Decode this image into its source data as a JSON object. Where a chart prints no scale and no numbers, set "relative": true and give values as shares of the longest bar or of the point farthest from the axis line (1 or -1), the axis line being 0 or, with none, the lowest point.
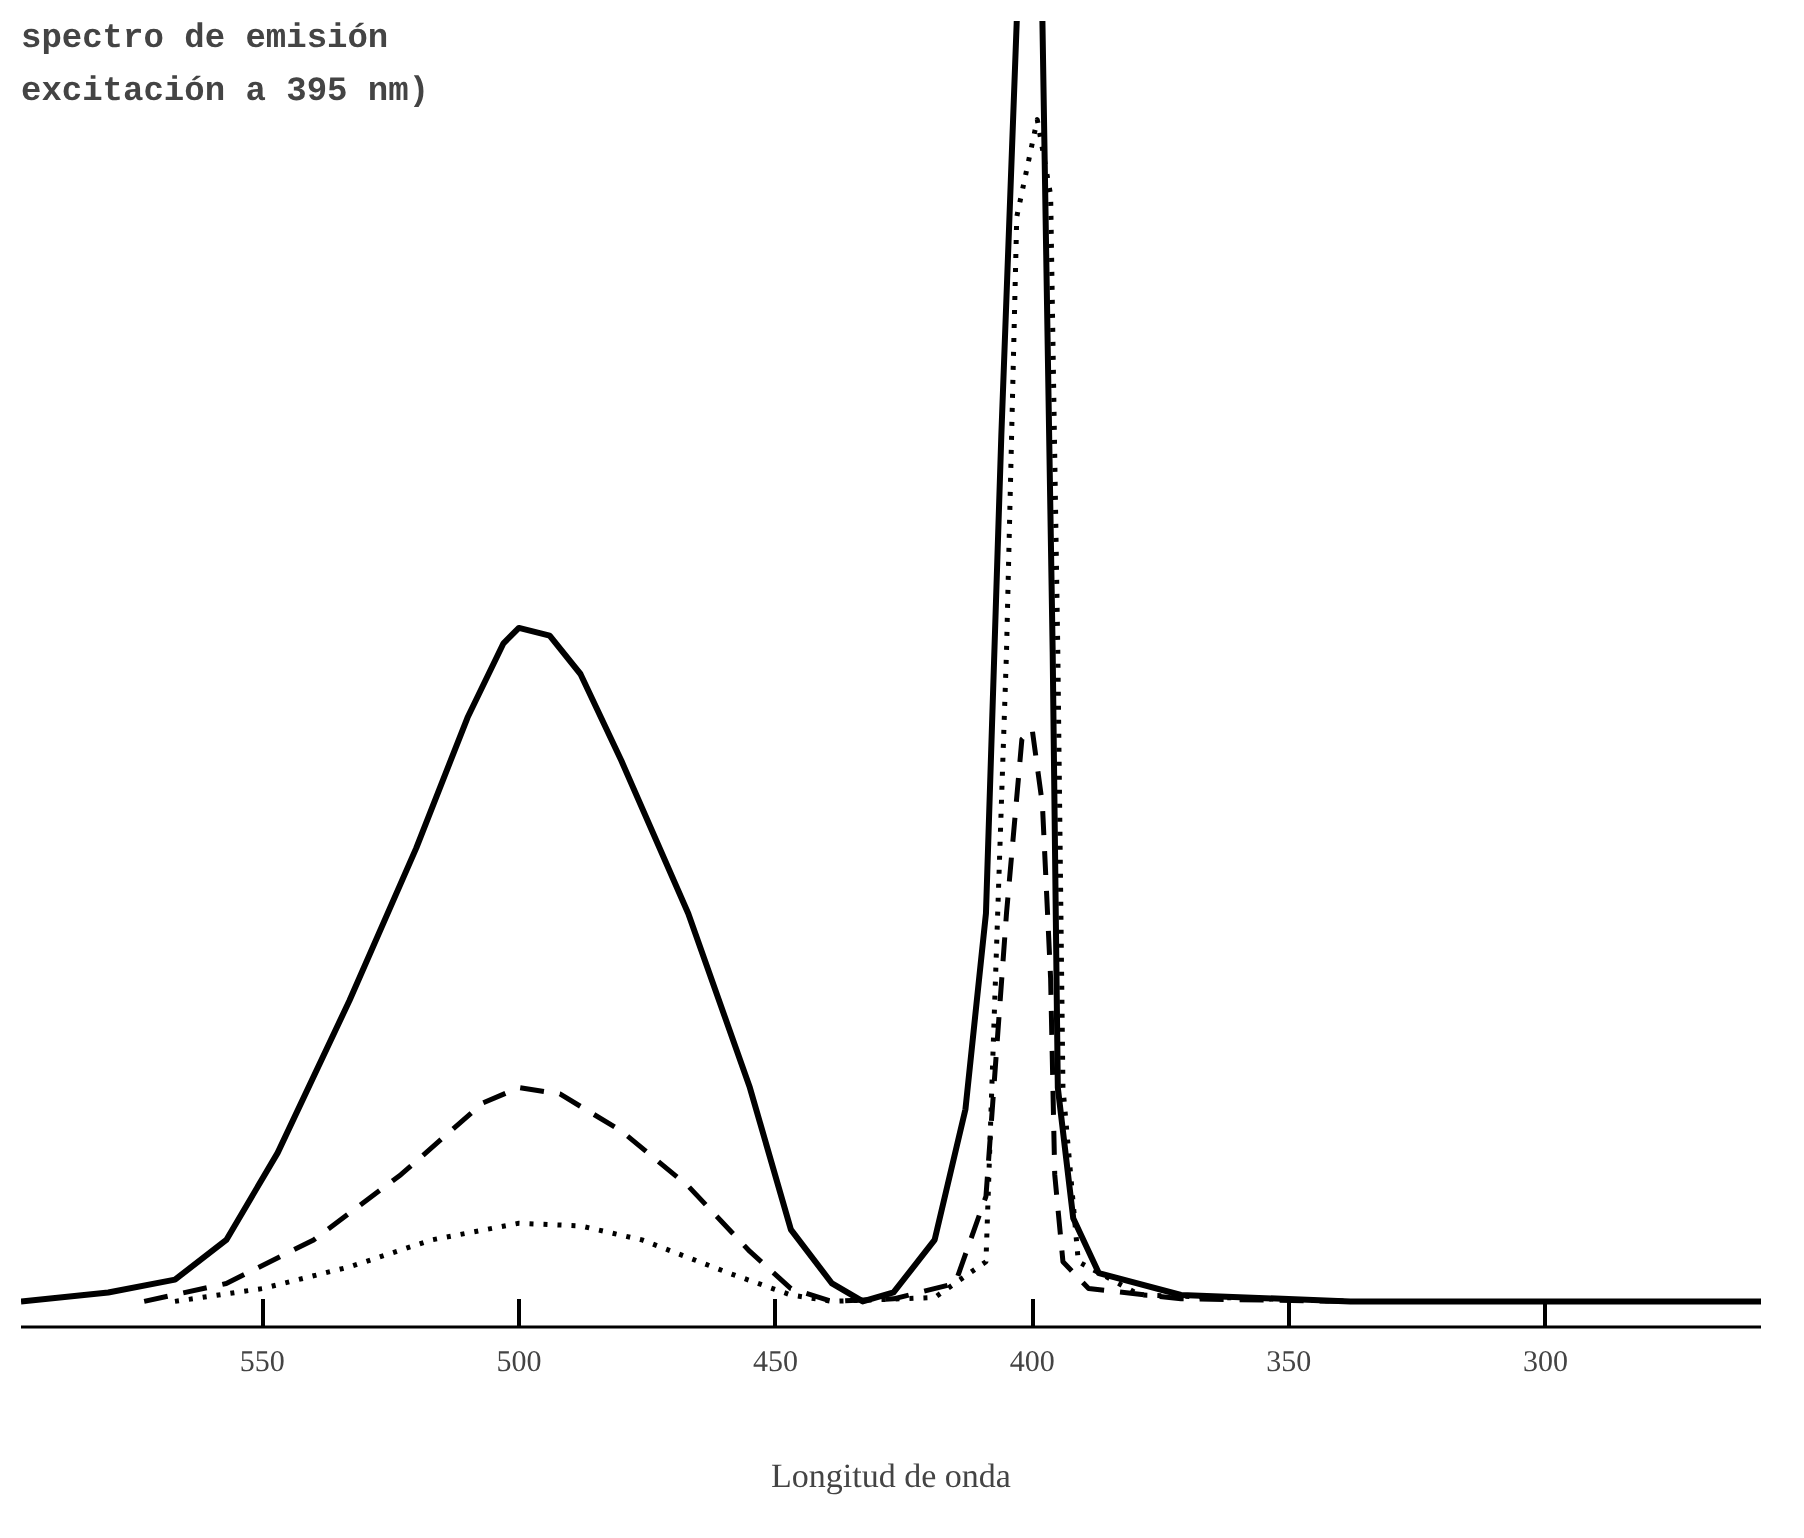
{
  "chart_data": {
    "type": "line",
    "title": "spectro de emisión\nexcitación a 395 nm)",
    "xlabel": "Longitud de onda",
    "relative": true,
    "xlim": [
      597,
      258
    ],
    "xticks": [
      550,
      500,
      450,
      400,
      350,
      300
    ],
    "grid": false,
    "marker": "none",
    "series": [
      {
        "color": "#000000",
        "line_style": "solid",
        "x": [
          597,
          580,
          567,
          557,
          547,
          533,
          520,
          510,
          503,
          500,
          494,
          488,
          480,
          467,
          455,
          447,
          439,
          433,
          427,
          419,
          413,
          409,
          406,
          403,
          400,
          398,
          396,
          395,
          392,
          387,
          371,
          338,
          299,
          258
        ],
        "values": [
          0,
          0.007,
          0.017,
          0.048,
          0.116,
          0.235,
          0.354,
          0.456,
          0.514,
          0.526,
          0.52,
          0.49,
          0.422,
          0.303,
          0.167,
          0.056,
          0.014,
          0,
          0.007,
          0.048,
          0.15,
          0.303,
          0.677,
          1.0,
          null,
          1.0,
          0.507,
          0.167,
          0.065,
          0.022,
          0.005,
          0,
          0,
          0
        ]
      },
      {
        "color": "#000000",
        "line_style": "dashed",
        "x": [
          573,
          557,
          540,
          523,
          507,
          500,
          492,
          480,
          467,
          455,
          447,
          439,
          427,
          415,
          409,
          405,
          402,
          400,
          398,
          396.4,
          395.6,
          394,
          389,
          371,
          338
        ],
        "values": [
          0,
          0.014,
          0.048,
          0.099,
          0.155,
          0.167,
          0.162,
          0.133,
          0.09,
          0.039,
          0.01,
          0,
          0.002,
          0.014,
          0.082,
          0.303,
          0.439,
          0.447,
          0.388,
          0.252,
          0.099,
          0.031,
          0.01,
          0.002,
          0
        ]
      },
      {
        "color": "#000000",
        "line_style": "dotted",
        "x": [
          567,
          550,
          533,
          517,
          500,
          488,
          476,
          459,
          447,
          439,
          419,
          409,
          405,
          403,
          399,
          396.4,
          395,
          394,
          391,
          379,
          338
        ],
        "values": [
          0,
          0.01,
          0.027,
          0.048,
          0.061,
          0.059,
          0.048,
          0.022,
          0.005,
          0,
          0.003,
          0.031,
          0.507,
          0.847,
          0.923,
          0.864,
          0.507,
          0.167,
          0.031,
          0.005,
          0
        ]
      }
    ]
  }
}
